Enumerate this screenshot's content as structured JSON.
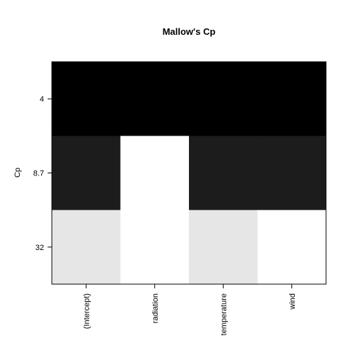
{
  "chart_data": {
    "type": "heatmap",
    "title": "Mallow's Cp",
    "xlabel": "",
    "ylabel": "Cp",
    "rows": [
      "4",
      "8.7",
      "32"
    ],
    "columns": [
      "(Intercept)",
      "radiation",
      "temperature",
      "wind"
    ],
    "cells": [
      [
        1,
        1,
        1,
        1
      ],
      [
        1,
        0,
        1,
        1
      ],
      [
        1,
        0,
        1,
        0
      ]
    ],
    "row_colors": [
      "#000000",
      "#1c1c1c",
      "#e6e6e6"
    ],
    "empty_color": "#ffffff",
    "grid": false
  }
}
